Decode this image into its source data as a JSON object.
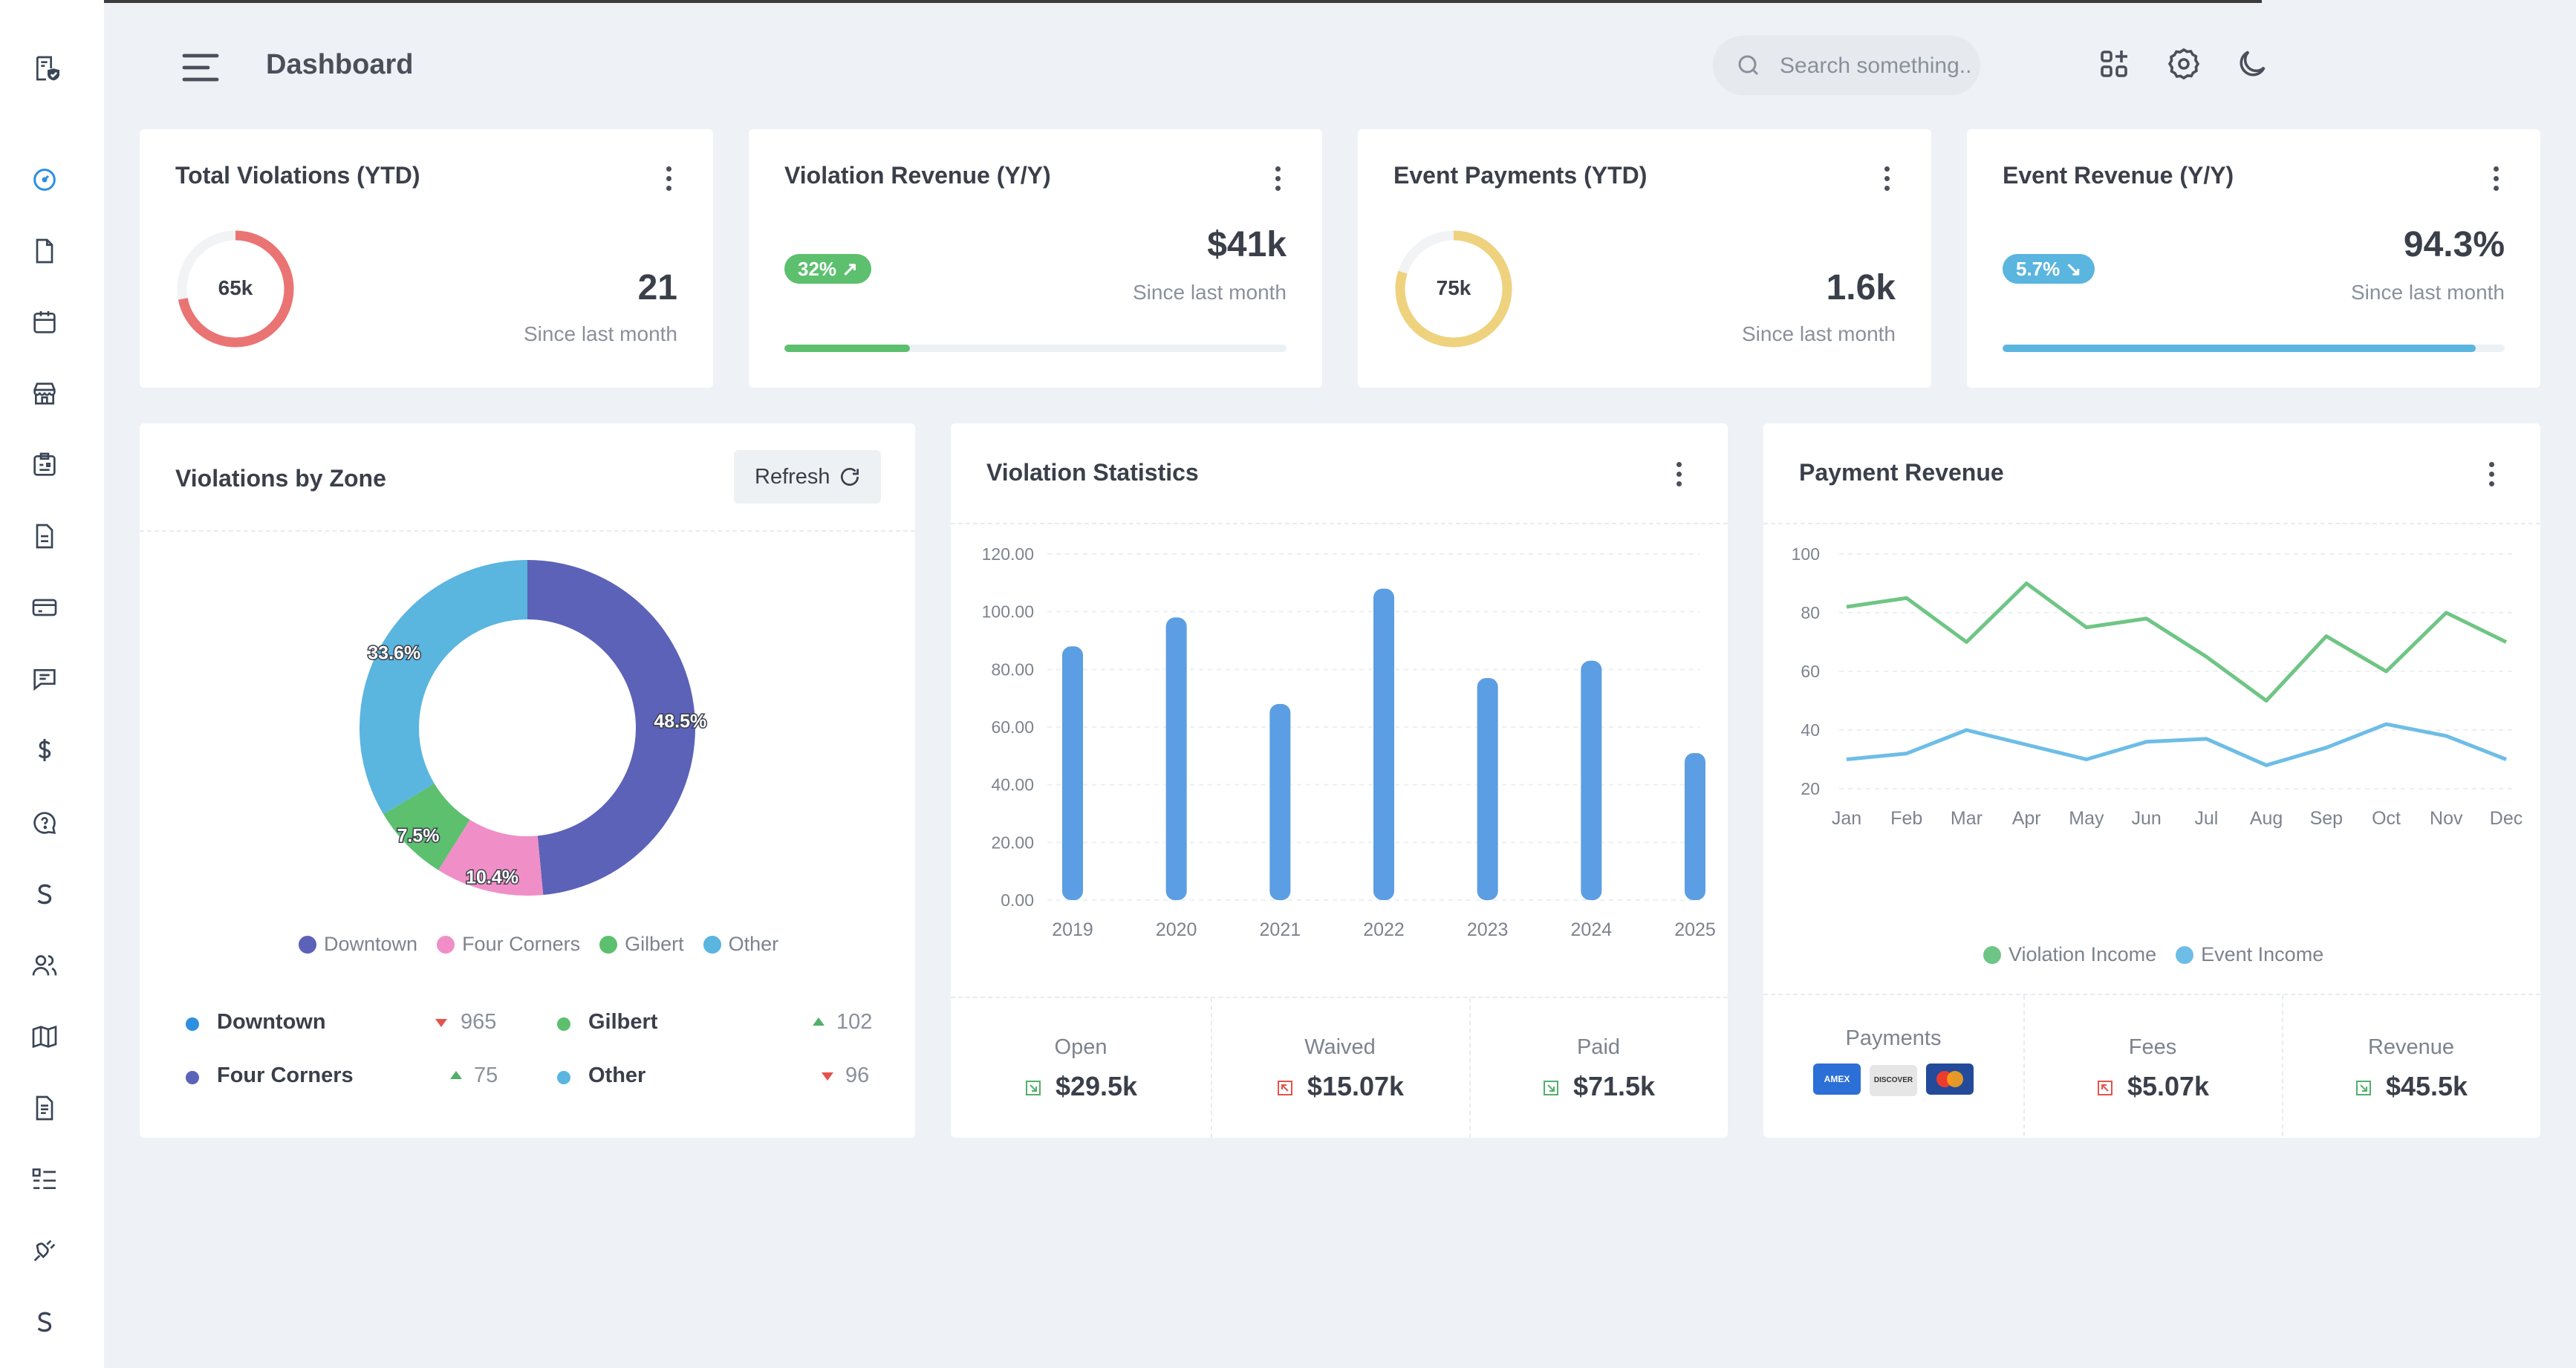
{
  "header": {
    "title": "Dashboard",
    "search_placeholder": "Search something.."
  },
  "kpis": [
    {
      "title": "Total Violations (YTD)",
      "ring_label": "65k",
      "ring_fraction": 0.72,
      "ring_color": "#ea7473",
      "value": "21",
      "sub": "Since last month"
    },
    {
      "title": "Violation Revenue (Y/Y)",
      "badge": "32%",
      "badge_color": "#5cc06e",
      "value": "$41k",
      "sub": "Since last month",
      "progress": 0.25,
      "bar_color": "#5cc06e"
    },
    {
      "title": "Event Payments (YTD)",
      "ring_label": "75k",
      "ring_fraction": 0.8,
      "ring_color": "#efd27e",
      "value": "1.6k",
      "sub": "Since last month"
    },
    {
      "title": "Event Revenue (Y/Y)",
      "badge": "5.7%",
      "badge_color": "#5ab5df",
      "value": "94.3%",
      "sub": "Since last month",
      "progress": 0.943,
      "bar_color": "#5ab5df"
    }
  ],
  "zones_card": {
    "title": "Violations by Zone",
    "refresh_label": "Refresh",
    "rows": [
      {
        "name": "Downtown",
        "value": "965",
        "trend": "down",
        "color": "#2e8fe0"
      },
      {
        "name": "Gilbert",
        "value": "102",
        "trend": "up",
        "color": "#5cc06e"
      },
      {
        "name": "Four Corners",
        "value": "75",
        "trend": "up",
        "color": "#5b62b8"
      },
      {
        "name": "Other",
        "value": "96",
        "trend": "down",
        "color": "#5ab5df"
      }
    ]
  },
  "stats_card": {
    "title": "Violation Statistics",
    "summary": [
      {
        "label": "Open",
        "value": "$29.5k",
        "dir": "down",
        "color": "#52b06a"
      },
      {
        "label": "Waived",
        "value": "$15.07k",
        "dir": "up",
        "color": "#e4534c"
      },
      {
        "label": "Paid",
        "value": "$71.5k",
        "dir": "down",
        "color": "#52b06a"
      }
    ]
  },
  "revenue_card": {
    "title": "Payment Revenue",
    "payments_label": "Payments",
    "card_logos": [
      "AMEX",
      "DISCOVER",
      "MC"
    ],
    "summary": [
      {
        "label": "Fees",
        "value": "$5.07k",
        "dir": "up",
        "color": "#e4534c"
      },
      {
        "label": "Revenue",
        "value": "$45.5k",
        "dir": "down",
        "color": "#52b06a"
      }
    ]
  },
  "sidebar_icons": [
    "logo-icon",
    "dashboard-icon",
    "file-icon",
    "calendar-icon",
    "store-icon",
    "clipboard-icon",
    "document-icon",
    "credit-card-icon",
    "message-icon",
    "dollar-icon",
    "chat-question-icon",
    "stripe-icon",
    "users-icon",
    "map-icon",
    "report-icon",
    "list-icon",
    "plug-icon",
    "stripe-icon-2"
  ],
  "chart_data": [
    {
      "type": "pie",
      "donut": true,
      "categories": [
        "Downtown",
        "Four Corners",
        "Gilbert",
        "Other"
      ],
      "values": [
        48.5,
        10.4,
        7.5,
        33.6
      ],
      "labels": [
        "48.5%",
        "10.4%",
        "7.5%",
        "33.6%"
      ],
      "colors": [
        "#5b62b8",
        "#f08fc7",
        "#5cc06e",
        "#5ab5df"
      ],
      "legend": "bottom"
    },
    {
      "type": "bar",
      "categories": [
        "2019",
        "2020",
        "2021",
        "2022",
        "2023",
        "2024",
        "2025"
      ],
      "values": [
        88,
        98,
        68,
        108,
        77,
        83,
        51
      ],
      "ylim": [
        0,
        120
      ],
      "yticks": [
        "0.00",
        "20.00",
        "40.00",
        "60.00",
        "80.00",
        "100.00",
        "120.00"
      ],
      "color": "#5b9ee3",
      "grid": true
    },
    {
      "type": "line",
      "x": [
        "Jan",
        "Feb",
        "Mar",
        "Apr",
        "May",
        "Jun",
        "Jul",
        "Aug",
        "Sep",
        "Oct",
        "Nov",
        "Dec"
      ],
      "ylim": [
        20,
        100
      ],
      "yticks": [
        "20",
        "40",
        "60",
        "80",
        "100"
      ],
      "series": [
        {
          "name": "Violation Income",
          "values": [
            82,
            85,
            70,
            90,
            75,
            78,
            65,
            50,
            72,
            60,
            80,
            70
          ],
          "color": "#6fc585"
        },
        {
          "name": "Event Income",
          "values": [
            30,
            32,
            40,
            35,
            30,
            36,
            37,
            28,
            34,
            42,
            38,
            30
          ],
          "color": "#6dbde6"
        }
      ],
      "legend": "bottom",
      "grid": true
    }
  ]
}
